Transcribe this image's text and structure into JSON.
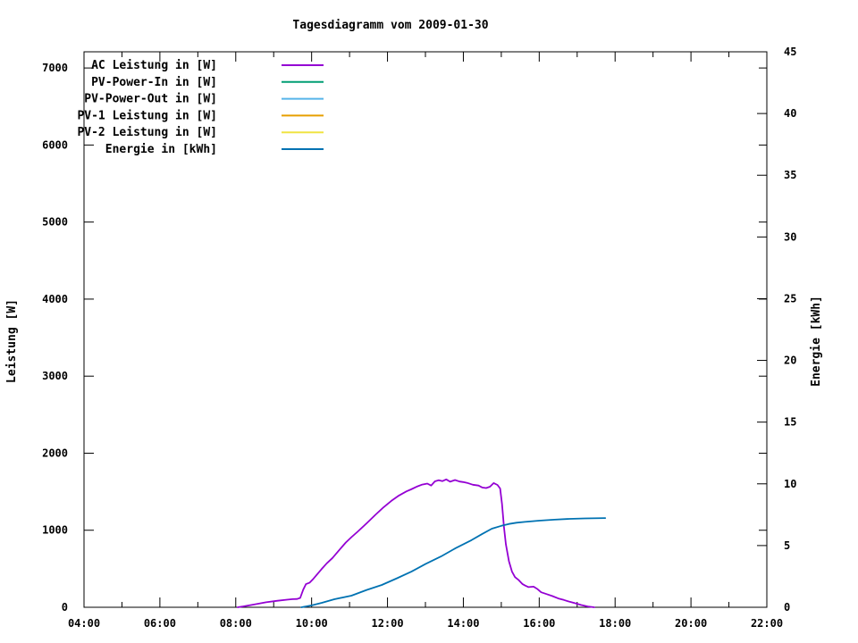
{
  "window": {
    "background": "#ffffff"
  },
  "chart_data": {
    "type": "line",
    "title": "Tagesdiagramm vom 2009-01-30",
    "grid": false,
    "legend_position": "top-left-inside",
    "x_axis": {
      "label": "",
      "start_hour": 4,
      "end_hour": 22,
      "major_step_hours": 2,
      "minor_step_hours": 1,
      "tick_labels": [
        "04:00",
        "06:00",
        "08:00",
        "10:00",
        "12:00",
        "14:00",
        "16:00",
        "18:00",
        "20:00",
        "22:00"
      ]
    },
    "y_axis_left": {
      "label": "Leistung [W]",
      "min": 0,
      "max": 7210,
      "tick_step": 1000,
      "ticks": [
        0,
        1000,
        2000,
        3000,
        4000,
        5000,
        6000,
        7000
      ]
    },
    "y_axis_right": {
      "label": "Energie [kWh]",
      "min": 0,
      "max": 45,
      "tick_step": 5,
      "ticks": [
        0,
        5,
        10,
        15,
        20,
        25,
        30,
        35,
        40,
        45
      ]
    },
    "series": [
      {
        "name": "AC Leistung in [W]",
        "color": "#9400d3",
        "axis": "left",
        "points": [
          [
            8.05,
            0
          ],
          [
            8.2,
            12
          ],
          [
            8.5,
            38
          ],
          [
            8.8,
            65
          ],
          [
            9.1,
            85
          ],
          [
            9.35,
            98
          ],
          [
            9.5,
            105
          ],
          [
            9.62,
            108
          ],
          [
            9.7,
            122
          ],
          [
            9.78,
            230
          ],
          [
            9.85,
            300
          ],
          [
            9.95,
            320
          ],
          [
            10.03,
            360
          ],
          [
            10.15,
            430
          ],
          [
            10.27,
            500
          ],
          [
            10.4,
            570
          ],
          [
            10.55,
            640
          ],
          [
            10.74,
            750
          ],
          [
            10.9,
            840
          ],
          [
            11.05,
            910
          ],
          [
            11.21,
            980
          ],
          [
            11.45,
            1090
          ],
          [
            11.68,
            1200
          ],
          [
            11.9,
            1300
          ],
          [
            12.1,
            1380
          ],
          [
            12.3,
            1450
          ],
          [
            12.5,
            1505
          ],
          [
            12.62,
            1530
          ],
          [
            12.79,
            1570
          ],
          [
            12.9,
            1590
          ],
          [
            13.05,
            1605
          ],
          [
            13.15,
            1580
          ],
          [
            13.25,
            1635
          ],
          [
            13.35,
            1650
          ],
          [
            13.45,
            1638
          ],
          [
            13.55,
            1660
          ],
          [
            13.65,
            1630
          ],
          [
            13.78,
            1652
          ],
          [
            13.9,
            1632
          ],
          [
            14.0,
            1625
          ],
          [
            14.1,
            1615
          ],
          [
            14.25,
            1590
          ],
          [
            14.4,
            1580
          ],
          [
            14.5,
            1555
          ],
          [
            14.6,
            1548
          ],
          [
            14.7,
            1565
          ],
          [
            14.8,
            1612
          ],
          [
            14.9,
            1588
          ],
          [
            14.97,
            1542
          ],
          [
            15.02,
            1340
          ],
          [
            15.07,
            1040
          ],
          [
            15.12,
            820
          ],
          [
            15.2,
            600
          ],
          [
            15.28,
            465
          ],
          [
            15.36,
            392
          ],
          [
            15.46,
            352
          ],
          [
            15.56,
            300
          ],
          [
            15.63,
            282
          ],
          [
            15.72,
            262
          ],
          [
            15.85,
            268
          ],
          [
            15.95,
            238
          ],
          [
            16.05,
            195
          ],
          [
            16.2,
            170
          ],
          [
            16.35,
            145
          ],
          [
            16.5,
            115
          ],
          [
            16.65,
            95
          ],
          [
            16.8,
            72
          ],
          [
            16.95,
            52
          ],
          [
            17.1,
            30
          ],
          [
            17.28,
            10
          ],
          [
            17.45,
            0
          ]
        ]
      },
      {
        "name": "PV-Power-In in [W]",
        "color": "#009e73",
        "axis": "left",
        "points": []
      },
      {
        "name": "PV-Power-Out in [W]",
        "color": "#56b4e9",
        "axis": "left",
        "points": []
      },
      {
        "name": "PV-1 Leistung in [W]",
        "color": "#e69f00",
        "axis": "left",
        "points": []
      },
      {
        "name": "PV-2 Leistung in [W]",
        "color": "#f0e442",
        "axis": "left",
        "points": []
      },
      {
        "name": "Energie in [kWh]",
        "color": "#0072b2",
        "axis": "right",
        "points": [
          [
            9.73,
            0
          ],
          [
            10.0,
            0.15
          ],
          [
            10.27,
            0.36
          ],
          [
            10.6,
            0.65
          ],
          [
            11.05,
            0.94
          ],
          [
            11.45,
            1.4
          ],
          [
            11.85,
            1.81
          ],
          [
            12.25,
            2.35
          ],
          [
            12.63,
            2.89
          ],
          [
            13.0,
            3.5
          ],
          [
            13.41,
            4.12
          ],
          [
            13.8,
            4.8
          ],
          [
            14.21,
            5.43
          ],
          [
            14.5,
            5.95
          ],
          [
            14.75,
            6.37
          ],
          [
            15.0,
            6.6
          ],
          [
            15.2,
            6.75
          ],
          [
            15.4,
            6.85
          ],
          [
            15.62,
            6.92
          ],
          [
            16.0,
            7.02
          ],
          [
            16.4,
            7.1
          ],
          [
            16.8,
            7.16
          ],
          [
            17.2,
            7.2
          ],
          [
            17.74,
            7.23
          ]
        ]
      }
    ]
  }
}
